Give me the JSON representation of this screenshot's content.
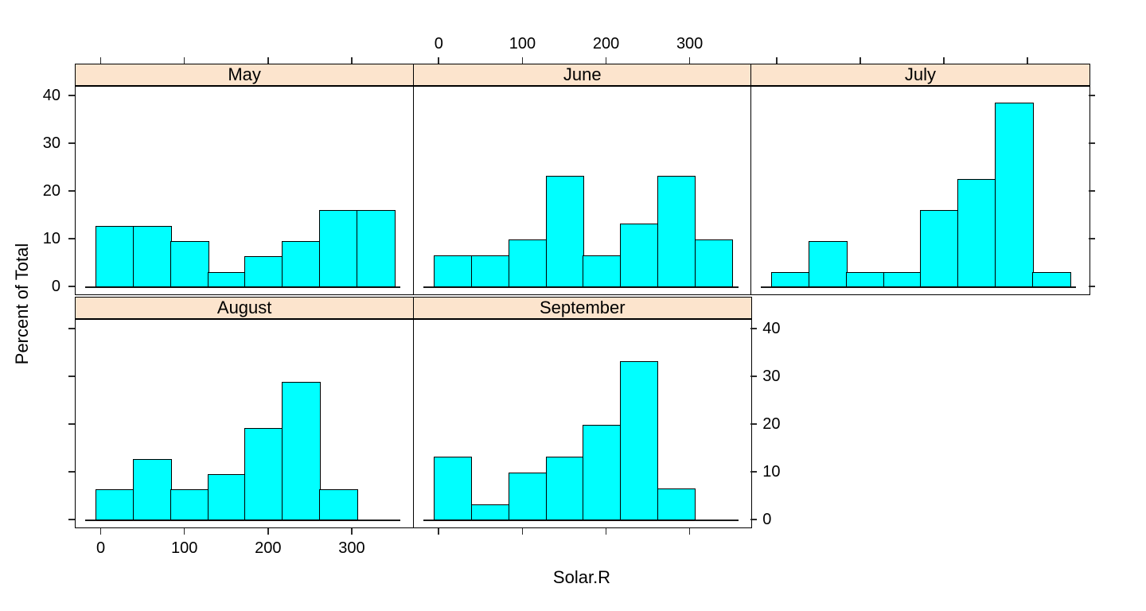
{
  "figure": {
    "background": "#FFFFFF"
  },
  "chart_data": {
    "type": "histogram",
    "title": "",
    "xlabel": "Solar.R",
    "ylabel": "Percent of Total",
    "facet_by": "Month",
    "layout": "3 columns x 2 rows, bottom-right cell empty",
    "x_ticks": [
      "0",
      "100",
      "200",
      "300"
    ],
    "x_tick_values": [
      0,
      100,
      200,
      300
    ],
    "y_ticks": [
      "0",
      "10",
      "20",
      "30",
      "40"
    ],
    "y_tick_values": [
      0,
      10,
      20,
      30,
      40
    ],
    "xlim": [
      -31,
      373
    ],
    "ylim": [
      -1.8,
      42
    ],
    "bin_start": -7,
    "bin_width": 44.5,
    "bar_fill": "#00FFFF",
    "bar_stroke": "#000000",
    "strip_fill": "#FCE4CD",
    "grid": false,
    "panels": [
      {
        "label": "May",
        "row": 0,
        "col": 0,
        "percent_values": [
          12.9,
          12.9,
          9.7,
          3.2,
          6.5,
          9.7,
          16.1,
          16.1
        ]
      },
      {
        "label": "June",
        "row": 0,
        "col": 1,
        "percent_values": [
          6.7,
          6.7,
          10.0,
          23.3,
          6.7,
          13.3,
          23.3,
          10.0
        ]
      },
      {
        "label": "July",
        "row": 0,
        "col": 2,
        "percent_values": [
          3.2,
          9.7,
          3.2,
          3.2,
          16.1,
          22.6,
          38.7,
          3.2
        ]
      },
      {
        "label": "August",
        "row": 1,
        "col": 0,
        "percent_values": [
          6.5,
          12.9,
          6.5,
          9.7,
          19.4,
          29.0,
          6.5
        ]
      },
      {
        "label": "September",
        "row": 1,
        "col": 1,
        "percent_values": [
          13.3,
          3.3,
          10.0,
          13.3,
          20.0,
          33.3,
          6.7
        ]
      }
    ]
  }
}
